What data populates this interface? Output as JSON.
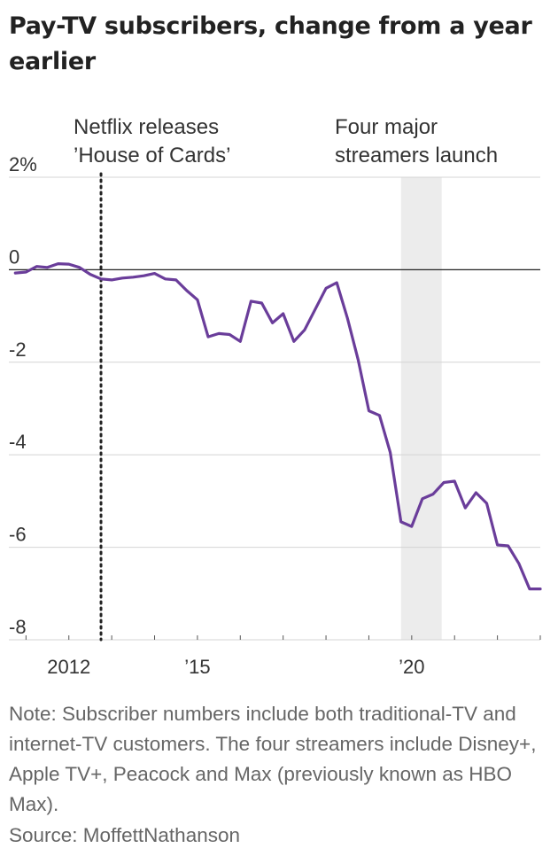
{
  "title": "Pay-TV subscribers, change from a year earlier",
  "note": "Note: Subscriber numbers include both traditional-TV and internet-TV customers. The four streamers include Disney+, Apple TV+, Peacock and Max (previously known as HBO Max).",
  "source": "Source: MoffettNathanson",
  "chart_data": {
    "type": "line",
    "title": "Pay-TV subscribers, change from a year earlier",
    "xlabel": "",
    "ylabel": "",
    "ylim": [
      -8,
      2
    ],
    "xlim": [
      2010.6,
      2023.0
    ],
    "y_ticks": [
      {
        "value": 2,
        "label": "2%"
      },
      {
        "value": 0,
        "label": "0"
      },
      {
        "value": -2,
        "label": "-2"
      },
      {
        "value": -4,
        "label": "-4"
      },
      {
        "value": -6,
        "label": "-6"
      },
      {
        "value": -8,
        "label": "-8"
      }
    ],
    "x_ticks_labeled": [
      {
        "value": 2012,
        "label": "2012"
      },
      {
        "value": 2015,
        "label": "’15"
      },
      {
        "value": 2020,
        "label": "’20"
      }
    ],
    "x_ticks_minor": [
      2011,
      2012,
      2013,
      2014,
      2015,
      2016,
      2017,
      2018,
      2019,
      2020,
      2021,
      2022,
      2023
    ],
    "grid": true,
    "color": "#6a3d9a",
    "annotations": [
      {
        "type": "vline",
        "x": 2012.75,
        "label_lines": [
          "Netflix releases",
          "’House of Cards’"
        ]
      },
      {
        "type": "band",
        "x_start": 2019.75,
        "x_end": 2020.7,
        "label_lines": [
          "Four major",
          "streamers launch"
        ]
      }
    ],
    "series": [
      {
        "x": [
          2010.75,
          2011.0,
          2011.25,
          2011.5,
          2011.75,
          2012.0,
          2012.25,
          2012.5,
          2012.75,
          2013.0,
          2013.25,
          2013.5,
          2013.75,
          2014.0,
          2014.25,
          2014.5,
          2014.75,
          2015.0,
          2015.25,
          2015.5,
          2015.75,
          2016.0,
          2016.25,
          2016.5,
          2016.75,
          2017.0,
          2017.25,
          2017.5,
          2017.75,
          2018.0,
          2018.25,
          2018.5,
          2018.75,
          2019.0,
          2019.25,
          2019.5,
          2019.75,
          2020.0,
          2020.25,
          2020.5,
          2020.75,
          2021.0,
          2021.25,
          2021.5,
          2021.75,
          2022.0,
          2022.25,
          2022.5,
          2022.75,
          2023.0
        ],
        "values": [
          -0.07,
          -0.05,
          0.07,
          0.05,
          0.13,
          0.12,
          0.05,
          -0.1,
          -0.2,
          -0.22,
          -0.18,
          -0.16,
          -0.13,
          -0.08,
          -0.2,
          -0.22,
          -0.45,
          -0.65,
          -1.45,
          -1.38,
          -1.4,
          -1.55,
          -0.68,
          -0.72,
          -1.15,
          -0.95,
          -1.55,
          -1.3,
          -0.85,
          -0.4,
          -0.28,
          -1.05,
          -1.95,
          -3.05,
          -3.15,
          -3.95,
          -5.45,
          -5.55,
          -4.95,
          -4.85,
          -4.6,
          -4.57,
          -5.15,
          -4.82,
          -5.05,
          -5.95,
          -5.97,
          -6.35,
          -6.9,
          -6.9
        ]
      }
    ]
  }
}
